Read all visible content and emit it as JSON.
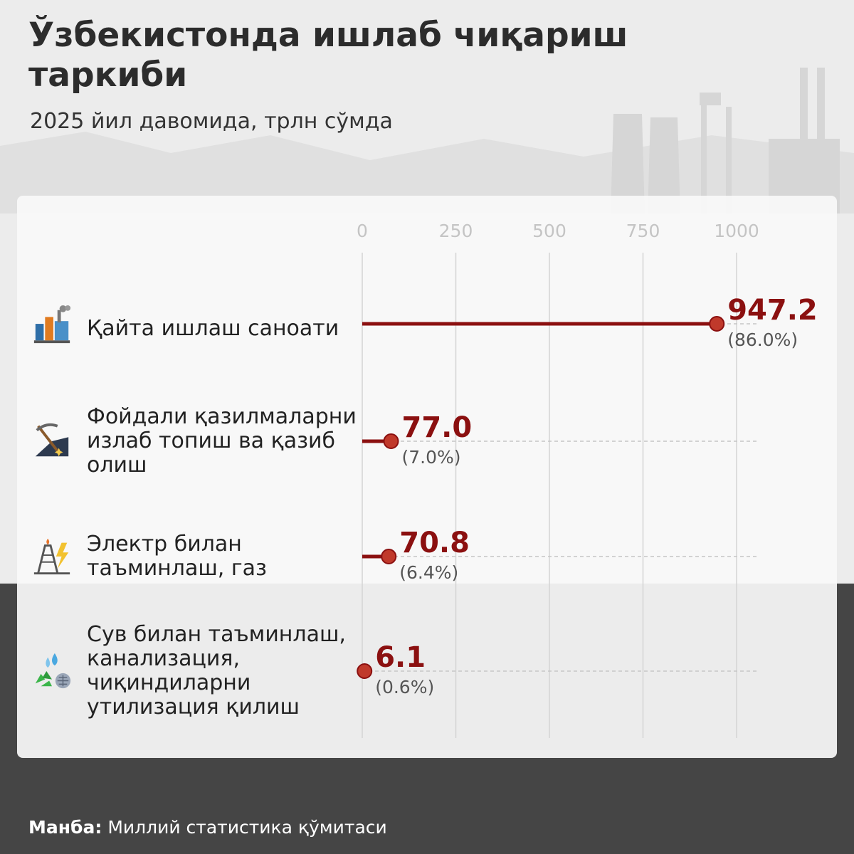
{
  "title": "Ўзбекистонда ишлаб чиқариш таркиби",
  "subtitle": "2025 йил давомида, трлн сўмда",
  "source": {
    "label": "Манба:",
    "text": "Миллий статистика қўмитаси"
  },
  "colors": {
    "accent": "#8b1010",
    "marker": "#c0392b",
    "background_light": "#ececec",
    "background_dark": "#454545"
  },
  "icons": [
    "factory-icon",
    "mining-icon",
    "power-gas-icon",
    "water-recycling-icon"
  ],
  "chart_data": {
    "type": "bar",
    "title": "Ўзбекистонда ишлаб чиқариш таркиби",
    "subtitle": "2025 йил давомида, трлн сўмда",
    "categories": [
      "Қайта ишлаш саноати",
      "Фойдали қазилмаларни излаб топиш ва қазиб олиш",
      "Электр билан таъминлаш, газ",
      "Сув билан таъминлаш, канализация, чиқиндиларни утилизация қилиш"
    ],
    "values": [
      947.2,
      77.0,
      70.8,
      6.1
    ],
    "value_labels": [
      "947.2",
      "77.0",
      "70.8",
      "6.1"
    ],
    "percent_labels": [
      "(86.0%)",
      "(7.0%)",
      "(6.4%)",
      "(0.6%)"
    ],
    "xlim": [
      0,
      1000
    ],
    "xticks": [
      0,
      250,
      500,
      750,
      1000
    ],
    "xtick_labels": [
      "0",
      "250",
      "500",
      "750",
      "1000"
    ],
    "grid": true,
    "orientation": "horizontal"
  }
}
